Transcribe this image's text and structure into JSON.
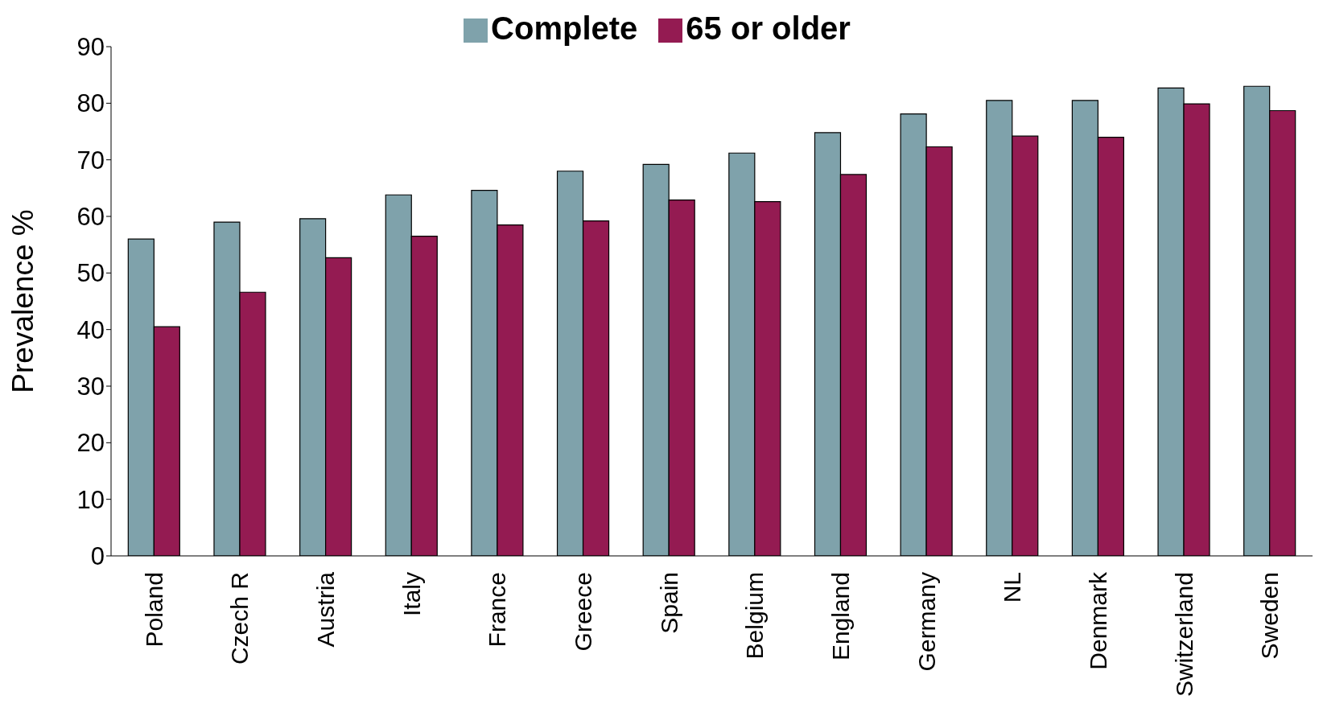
{
  "chart_data": {
    "type": "bar",
    "ylabel": "Prevalence %",
    "categories": [
      "Poland",
      "Czech R",
      "Austria",
      "Italy",
      "France",
      "Greece",
      "Spain",
      "Belgium",
      "England",
      "Germany",
      "NL",
      "Denmark",
      "Switzerland",
      "Sweden"
    ],
    "series": [
      {
        "name": "Complete",
        "color": "#7fa2ab",
        "values": [
          56,
          59,
          59.6,
          63.8,
          64.6,
          68,
          69.2,
          71.2,
          74.8,
          78.1,
          80.5,
          80.5,
          82.7,
          83
        ]
      },
      {
        "name": "65 or older",
        "color": "#941b52",
        "values": [
          40.5,
          46.6,
          52.7,
          56.5,
          58.5,
          59.2,
          62.9,
          62.6,
          67.4,
          72.3,
          74.2,
          74,
          79.9,
          78.7
        ]
      }
    ],
    "ylim": [
      0,
      90
    ],
    "yticks": [
      0,
      10,
      20,
      30,
      40,
      50,
      60,
      70,
      80,
      90
    ],
    "grid": false,
    "legend": "top"
  }
}
